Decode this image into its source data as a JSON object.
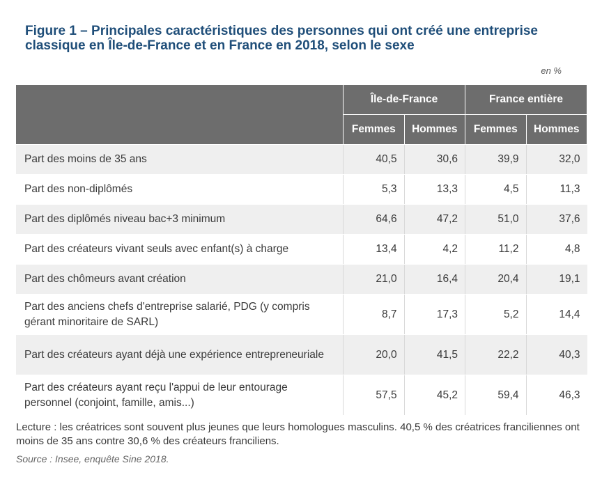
{
  "title": "Figure 1 – Principales caractéristiques des personnes qui ont créé une entreprise classique en Île-de-France et en France en 2018, selon le sexe",
  "unit": "en %",
  "table": {
    "groups": [
      "Île-de-France",
      "France entière"
    ],
    "subheaders": [
      "Femmes",
      "Hommes",
      "Femmes",
      "Hommes"
    ],
    "rows": [
      {
        "label": "Part des moins de 35 ans",
        "values": [
          "40,5",
          "30,6",
          "39,9",
          "32,0"
        ]
      },
      {
        "label": "Part des non-diplômés",
        "values": [
          "5,3",
          "13,3",
          "4,5",
          "11,3"
        ]
      },
      {
        "label": "Part des diplômés niveau bac+3 minimum",
        "values": [
          "64,6",
          "47,2",
          "51,0",
          "37,6"
        ]
      },
      {
        "label": "Part des créateurs vivant seuls avec enfant(s) à charge",
        "values": [
          "13,4",
          "4,2",
          "11,2",
          "4,8"
        ]
      },
      {
        "label": "Part des chômeurs avant création",
        "values": [
          "21,0",
          "16,4",
          "20,4",
          "19,1"
        ]
      },
      {
        "label": "Part des anciens chefs d'entreprise salarié, PDG (y compris gérant minoritaire de SARL)",
        "values": [
          "8,7",
          "17,3",
          "5,2",
          "14,4"
        ]
      },
      {
        "label": "Part des créateurs ayant déjà une expérience entrepreneuriale",
        "values": [
          "20,0",
          "41,5",
          "22,2",
          "40,3"
        ]
      },
      {
        "label": "Part des créateurs ayant reçu l'appui de leur entourage personnel (conjoint, famille, amis...)",
        "values": [
          "57,5",
          "45,2",
          "59,4",
          "46,3"
        ]
      }
    ]
  },
  "reading": "Lecture : les créatrices sont souvent plus jeunes que leurs homologues masculins. 40,5 % des créatrices franciliennes ont moins de 35 ans contre 30,6 % des créateurs franciliens.",
  "source": "Source : Insee, enquête Sine 2018."
}
